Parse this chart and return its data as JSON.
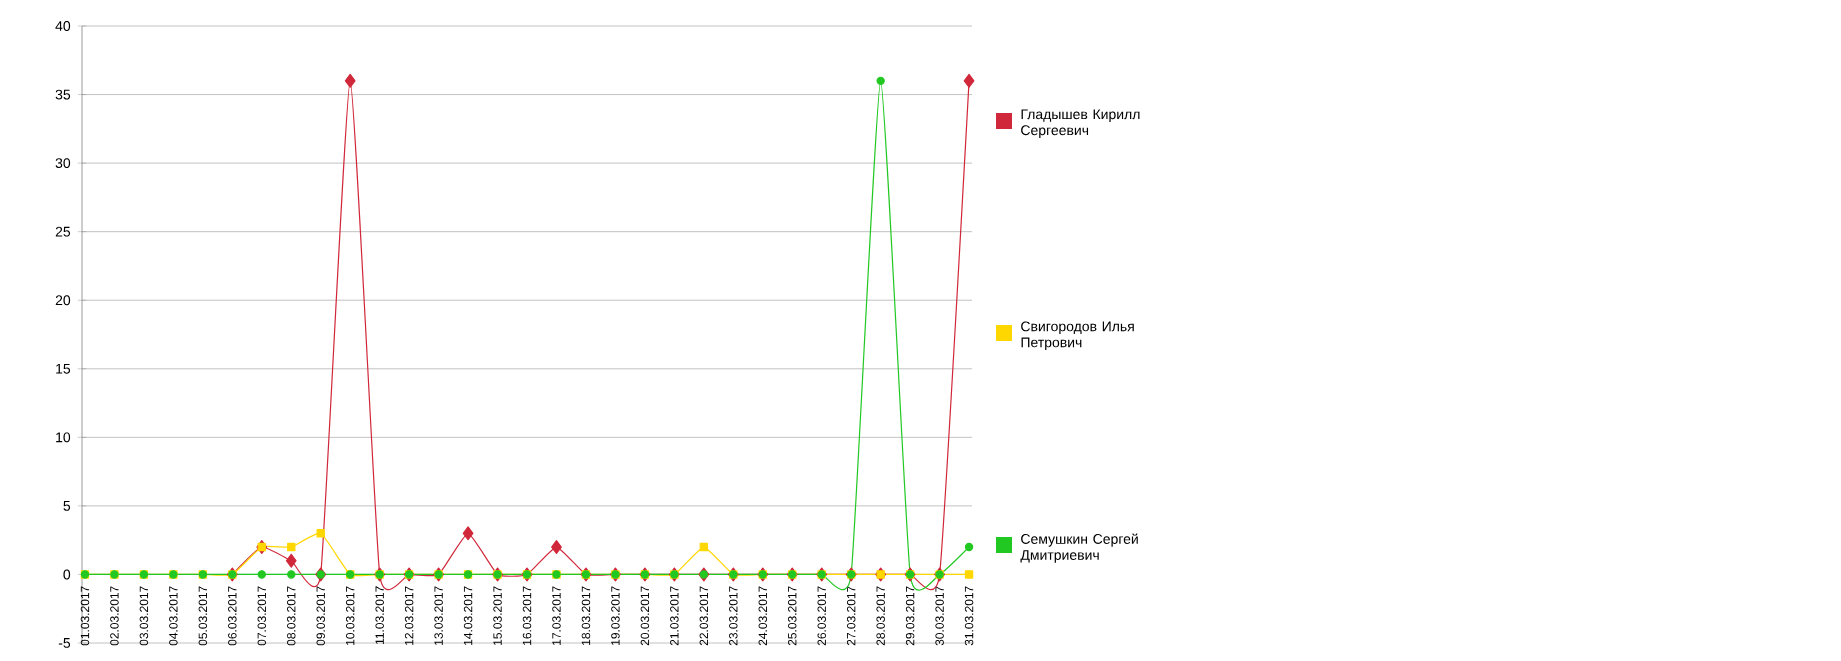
{
  "chart_data": {
    "type": "line",
    "categories": [
      "01.03.2017",
      "02.03.2017",
      "03.03.2017",
      "04.03.2017",
      "05.03.2017",
      "06.03.2017",
      "07.03.2017",
      "08.03.2017",
      "09.03.2017",
      "10.03.2017",
      "11.03.2017",
      "12.03.2017",
      "13.03.2017",
      "14.03.2017",
      "15.03.2017",
      "16.03.2017",
      "17.03.2017",
      "18.03.2017",
      "19.03.2017",
      "20.03.2017",
      "21.03.2017",
      "22.03.2017",
      "23.03.2017",
      "24.03.2017",
      "25.03.2017",
      "26.03.2017",
      "27.03.2017",
      "28.03.2017",
      "29.03.2017",
      "30.03.2017",
      "31.03.2017"
    ],
    "series": [
      {
        "name": "Гладышев Кирилл Сергеевич",
        "color": "#d0283a",
        "marker": "diamond",
        "values": [
          null,
          null,
          null,
          null,
          null,
          0,
          2,
          1,
          0,
          36,
          0,
          0,
          0,
          3,
          0,
          0,
          2,
          0,
          0,
          0,
          0,
          0,
          0,
          0,
          0,
          0,
          0,
          0,
          0,
          0,
          36
        ]
      },
      {
        "name": "Свигородов Илья Петрович",
        "color": "#ffd700",
        "marker": "square",
        "values": [
          0,
          0,
          0,
          0,
          0,
          0,
          2,
          2,
          3,
          0,
          0,
          0,
          0,
          0,
          0,
          0,
          0,
          0,
          0,
          0,
          0,
          2,
          0,
          0,
          0,
          0,
          0,
          0,
          0,
          0,
          0
        ]
      },
      {
        "name": "Семушкин Сергей Дмитриевич",
        "color": "#22c822",
        "marker": "circle",
        "values": [
          0,
          0,
          0,
          0,
          0,
          0,
          0,
          0,
          0,
          0,
          0,
          0,
          0,
          0,
          0,
          0,
          0,
          0,
          0,
          0,
          0,
          0,
          0,
          0,
          0,
          0,
          0,
          36,
          0,
          0,
          2
        ]
      }
    ],
    "ylim": [
      -5,
      40
    ],
    "yticks": [
      -5,
      0,
      5,
      10,
      15,
      20,
      25,
      30,
      35,
      40
    ],
    "grid": "y",
    "legend": "right"
  }
}
